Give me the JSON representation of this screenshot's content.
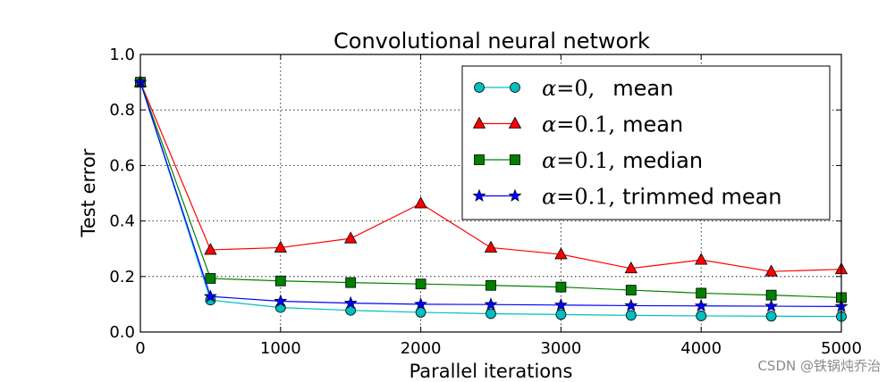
{
  "chart_data": {
    "type": "line",
    "title": "Convolutional neural network",
    "xlabel": "Parallel iterations",
    "ylabel": "Test error",
    "xlim": [
      0,
      5000
    ],
    "ylim": [
      0.0,
      1.0
    ],
    "xticks": [
      0,
      1000,
      2000,
      3000,
      4000,
      5000
    ],
    "xtick_labels": [
      "0",
      "1000",
      "2000",
      "3000",
      "4000",
      "5000"
    ],
    "yticks": [
      0.0,
      0.2,
      0.4,
      0.6,
      0.8,
      1.0
    ],
    "ytick_labels": [
      "0.0",
      "0.2",
      "0.4",
      "0.6",
      "0.8",
      "1.0"
    ],
    "grid": true,
    "legend_position": "top-right",
    "x": [
      0,
      500,
      1000,
      1500,
      2000,
      2500,
      3000,
      3500,
      4000,
      4500,
      5000
    ],
    "series": [
      {
        "name": "α=0,   mean",
        "legend_symbol": "α",
        "legend_value": "=0,",
        "legend_method": "mean",
        "color": "#00bfbf",
        "marker": "circle",
        "values": [
          0.9,
          0.115,
          0.088,
          0.078,
          0.071,
          0.066,
          0.063,
          0.06,
          0.058,
          0.057,
          0.056
        ]
      },
      {
        "name": "α=0.1, mean",
        "legend_symbol": "α",
        "legend_value": "=0.1,",
        "legend_method": "mean",
        "color": "#ff0000",
        "marker": "triangle",
        "values": [
          0.9,
          0.296,
          0.304,
          0.337,
          0.463,
          0.304,
          0.28,
          0.229,
          0.26,
          0.218,
          0.226
        ]
      },
      {
        "name": "α=0.1, median",
        "legend_symbol": "α",
        "legend_value": "=0.1,",
        "legend_method": "median",
        "color": "#008000",
        "marker": "square",
        "values": [
          0.9,
          0.193,
          0.184,
          0.178,
          0.173,
          0.168,
          0.162,
          0.151,
          0.14,
          0.133,
          0.124
        ]
      },
      {
        "name": "α=0.1, trimmed mean",
        "legend_symbol": "α",
        "legend_value": "=0.1,",
        "legend_method": "trimmed mean",
        "color": "#0000ff",
        "marker": "star",
        "values": [
          0.9,
          0.128,
          0.111,
          0.104,
          0.1,
          0.099,
          0.097,
          0.095,
          0.094,
          0.093,
          0.092
        ]
      }
    ]
  },
  "watermark": "CSDN @铁锅炖乔治"
}
